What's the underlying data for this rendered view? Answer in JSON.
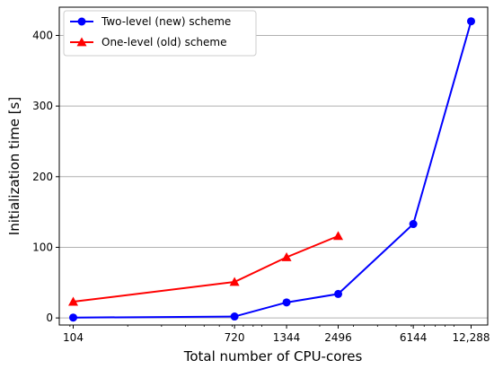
{
  "chart_data": {
    "type": "line",
    "title": "",
    "xlabel": "Total number of CPU-cores",
    "ylabel": "Initialization time [s]",
    "xscale": "log",
    "xlim": [
      88,
      15000
    ],
    "ylim": [
      -10,
      440
    ],
    "xticks": [
      {
        "value": 104,
        "label": "104"
      },
      {
        "value": 720,
        "label": "720"
      },
      {
        "value": 1344,
        "label": "1344"
      },
      {
        "value": 2496,
        "label": "2496"
      },
      {
        "value": 6144,
        "label": "6144"
      },
      {
        "value": 12288,
        "label": "12,288"
      }
    ],
    "yticks": [
      {
        "value": 0,
        "label": "0"
      },
      {
        "value": 100,
        "label": "100"
      },
      {
        "value": 200,
        "label": "200"
      },
      {
        "value": 300,
        "label": "300"
      },
      {
        "value": 400,
        "label": "400"
      }
    ],
    "grid": "horizontal",
    "legend_position": "top-left",
    "series": [
      {
        "name": "Two-level (new) scheme",
        "color": "#0000ff",
        "marker": "circle",
        "x": [
          104,
          720,
          1344,
          2496,
          6144,
          12288
        ],
        "y": [
          0.5,
          2,
          22,
          34,
          133,
          420
        ]
      },
      {
        "name": "One-level (old) scheme",
        "color": "#ff0000",
        "marker": "triangle",
        "x": [
          104,
          720,
          1344,
          2496
        ],
        "y": [
          23,
          51,
          86,
          116
        ]
      }
    ]
  }
}
